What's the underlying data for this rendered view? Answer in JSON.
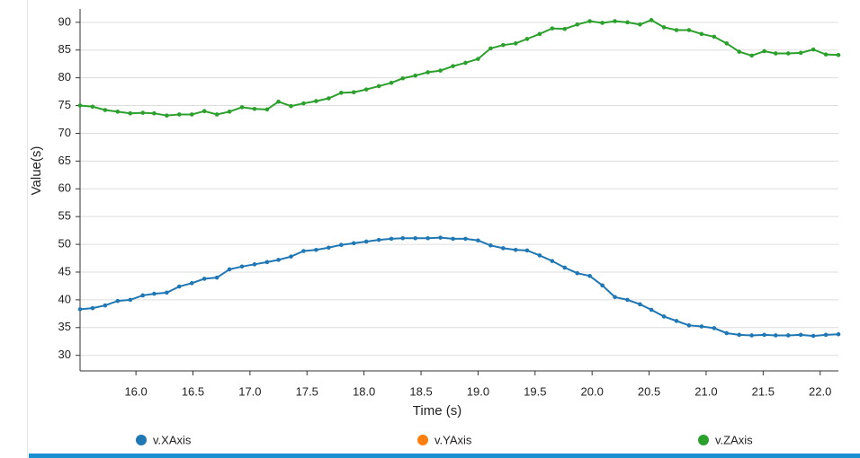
{
  "chart_data": {
    "type": "line",
    "xlabel": "Time (s)",
    "ylabel": "Value(s)",
    "x": [
      15.51,
      15.62,
      15.73,
      15.84,
      15.95,
      16.06,
      16.16,
      16.27,
      16.38,
      16.49,
      16.6,
      16.71,
      16.82,
      16.93,
      17.04,
      17.15,
      17.25,
      17.36,
      17.47,
      17.58,
      17.69,
      17.8,
      17.91,
      18.02,
      18.13,
      18.24,
      18.34,
      18.45,
      18.56,
      18.67,
      18.78,
      18.89,
      19.0,
      19.11,
      19.22,
      19.33,
      19.43,
      19.54,
      19.65,
      19.76,
      19.87,
      19.98,
      20.09,
      20.2,
      20.31,
      20.42,
      20.52,
      20.63,
      20.74,
      20.85,
      20.96,
      21.07,
      21.18,
      21.29,
      21.4,
      21.51,
      21.61,
      21.72,
      21.83,
      21.94,
      22.05,
      22.16
    ],
    "series": [
      {
        "name": "v.XAxis",
        "color": "#1f77b4",
        "values": [
          38.3,
          38.5,
          39.0,
          39.8,
          40.0,
          40.8,
          41.1,
          41.3,
          42.4,
          43.0,
          43.8,
          44.0,
          45.5,
          46.0,
          46.4,
          46.8,
          47.2,
          47.8,
          48.8,
          49.0,
          49.4,
          49.9,
          50.2,
          50.5,
          50.8,
          51.0,
          51.1,
          51.1,
          51.1,
          51.2,
          51.0,
          51.0,
          50.7,
          49.8,
          49.3,
          49.0,
          48.9,
          48.0,
          47.0,
          45.8,
          44.8,
          44.3,
          42.6,
          40.5,
          40.0,
          39.2,
          38.2,
          37.0,
          36.2,
          35.4,
          35.2,
          34.9,
          34.0,
          33.7,
          33.6,
          33.7,
          33.6,
          33.6,
          33.7,
          33.5,
          33.7,
          33.8
        ]
      },
      {
        "name": "v.YAxis",
        "color": "#ff7f0e",
        "values": [
          null,
          null,
          null,
          null,
          null,
          null,
          null,
          null,
          null,
          null,
          null,
          null,
          null,
          null,
          null,
          null,
          null,
          null,
          null,
          null,
          null,
          null,
          null,
          null,
          null,
          null,
          null,
          null,
          null,
          null,
          null,
          null,
          null,
          null,
          null,
          null,
          null,
          null,
          null,
          null,
          null,
          null,
          null,
          null,
          null,
          null,
          null,
          null,
          null,
          null,
          null,
          null,
          null,
          null,
          null,
          null,
          null,
          null,
          null,
          null,
          null,
          null
        ]
      },
      {
        "name": "v.ZAxis",
        "color": "#2ca02c",
        "values": [
          75.0,
          74.8,
          74.2,
          73.9,
          73.6,
          73.7,
          73.6,
          73.2,
          73.4,
          73.4,
          74.0,
          73.4,
          73.9,
          74.7,
          74.4,
          74.3,
          75.7,
          74.9,
          75.4,
          75.8,
          76.3,
          77.3,
          77.4,
          77.9,
          78.5,
          79.1,
          79.9,
          80.4,
          81.0,
          81.3,
          82.1,
          82.7,
          83.4,
          85.3,
          85.9,
          86.2,
          87.0,
          87.9,
          88.9,
          88.8,
          89.6,
          90.2,
          89.9,
          90.2,
          90.0,
          89.6,
          90.4,
          89.1,
          88.6,
          88.6,
          87.9,
          87.4,
          86.2,
          84.7,
          84.0,
          84.8,
          84.4,
          84.4,
          84.5,
          85.1,
          84.2,
          84.1
        ]
      }
    ],
    "xlim": [
      15.51,
      22.16
    ],
    "xticks": [
      {
        "value": 16,
        "label": "16.0"
      },
      16.5,
      {
        "value": 17,
        "label": "17.0"
      },
      17.5,
      {
        "value": 18,
        "label": "18.0"
      },
      18.5,
      {
        "value": 19,
        "label": "19.0"
      },
      19.5,
      {
        "value": 20,
        "label": "20.0"
      },
      20.5,
      {
        "value": 21,
        "label": "21.0"
      },
      21.5,
      {
        "value": 22,
        "label": "22.0"
      }
    ],
    "ylim": [
      27.2,
      92.4
    ],
    "yticks": [
      30,
      35,
      40,
      45,
      50,
      55,
      60,
      65,
      70,
      75,
      80,
      85,
      90
    ],
    "grid": true
  }
}
